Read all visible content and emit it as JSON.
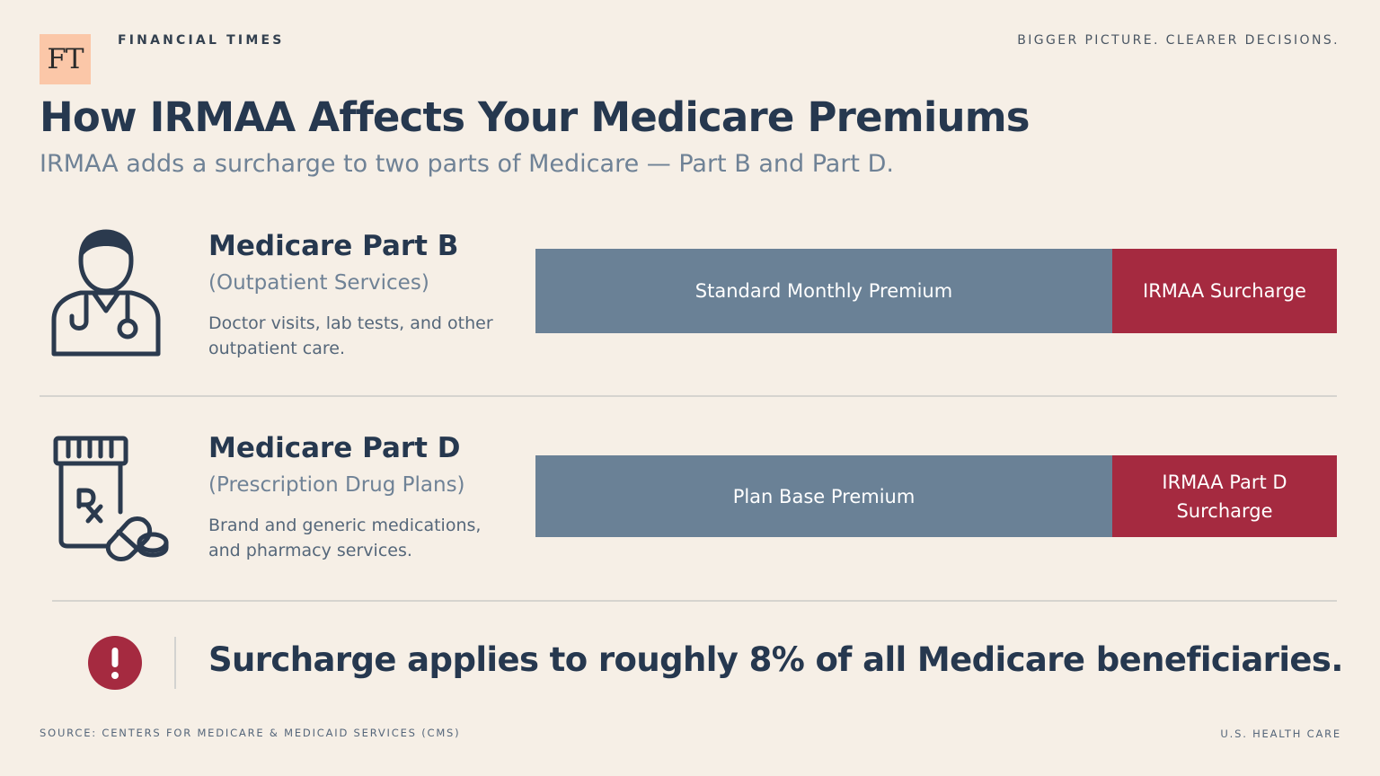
{
  "header": {
    "logo_text": "FT",
    "brand": "FINANCIAL TIMES",
    "tagline": "BIGGER PICTURE. CLEARER DECISIONS."
  },
  "title": "How IRMAA Affects Your Medicare Premiums",
  "subtitle": "IRMAA adds a surcharge to two parts of Medicare — Part B and Part D.",
  "parts": [
    {
      "icon": "doctor-icon",
      "title": "Medicare Part B",
      "subtitle": "(Outpatient Services)",
      "description": "Doctor visits, lab tests, and other outpatient care.",
      "bar": {
        "base_label": "Standard Monthly Premium",
        "surcharge_label": "IRMAA Surcharge"
      }
    },
    {
      "icon": "prescription-bottle-icon",
      "title": "Medicare Part D",
      "subtitle": "(Prescription Drug Plans)",
      "description": "Brand and generic medications, and pharmacy services.",
      "bar": {
        "base_label": "Plan Base Premium",
        "surcharge_label": "IRMAA Part D Surcharge"
      }
    }
  ],
  "callout": {
    "icon": "alert-icon",
    "text": "Surcharge applies to roughly 8% of all Medicare beneficiaries."
  },
  "footer": {
    "source": "SOURCE: CENTERS FOR MEDICARE & MEDICAID SERVICES (CMS)",
    "section": "U.S. HEALTH CARE"
  },
  "colors": {
    "background": "#f6efe6",
    "base_bar": "#6a8196",
    "surcharge_bar": "#a52a40",
    "heading": "#26384f",
    "logo_bg": "#fbc7a8"
  }
}
